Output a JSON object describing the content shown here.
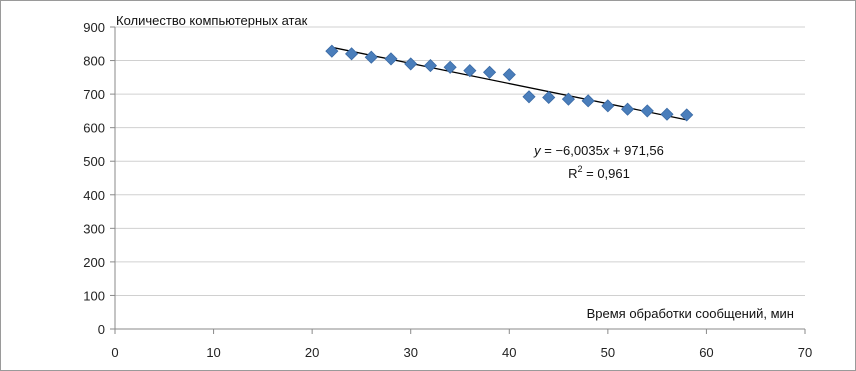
{
  "chart_data": {
    "type": "scatter",
    "x": [
      22,
      24,
      26,
      28,
      30,
      32,
      34,
      36,
      38,
      40,
      42,
      44,
      46,
      48,
      50,
      52,
      54,
      56,
      58
    ],
    "y": [
      828,
      820,
      810,
      805,
      790,
      785,
      780,
      770,
      765,
      758,
      692,
      690,
      685,
      680,
      665,
      655,
      650,
      640,
      638
    ],
    "xlim": [
      0,
      70
    ],
    "ylim": [
      0,
      900
    ],
    "xticks": [
      0,
      10,
      20,
      30,
      40,
      50,
      60,
      70
    ],
    "yticks": [
      0,
      100,
      200,
      300,
      400,
      500,
      600,
      700,
      800,
      900
    ],
    "xlabel": "Время обработки сообщений, мин",
    "ylabel": "Количество компьютерных  атак",
    "grid": "horizontal",
    "marker": "diamond",
    "marker_color": "#4a7ebb",
    "trendline": {
      "type": "linear",
      "slope": -6.0035,
      "intercept": 971.56,
      "x_range": [
        22,
        58
      ],
      "color": "#000000",
      "equation_parts": {
        "y": "y",
        "eq_mid": " = −6,0035",
        "x": "x",
        "eq_tail": " + 971,56"
      },
      "r2_parts": {
        "r": "R",
        "sup": "2",
        "tail": " = 0,961"
      }
    }
  }
}
